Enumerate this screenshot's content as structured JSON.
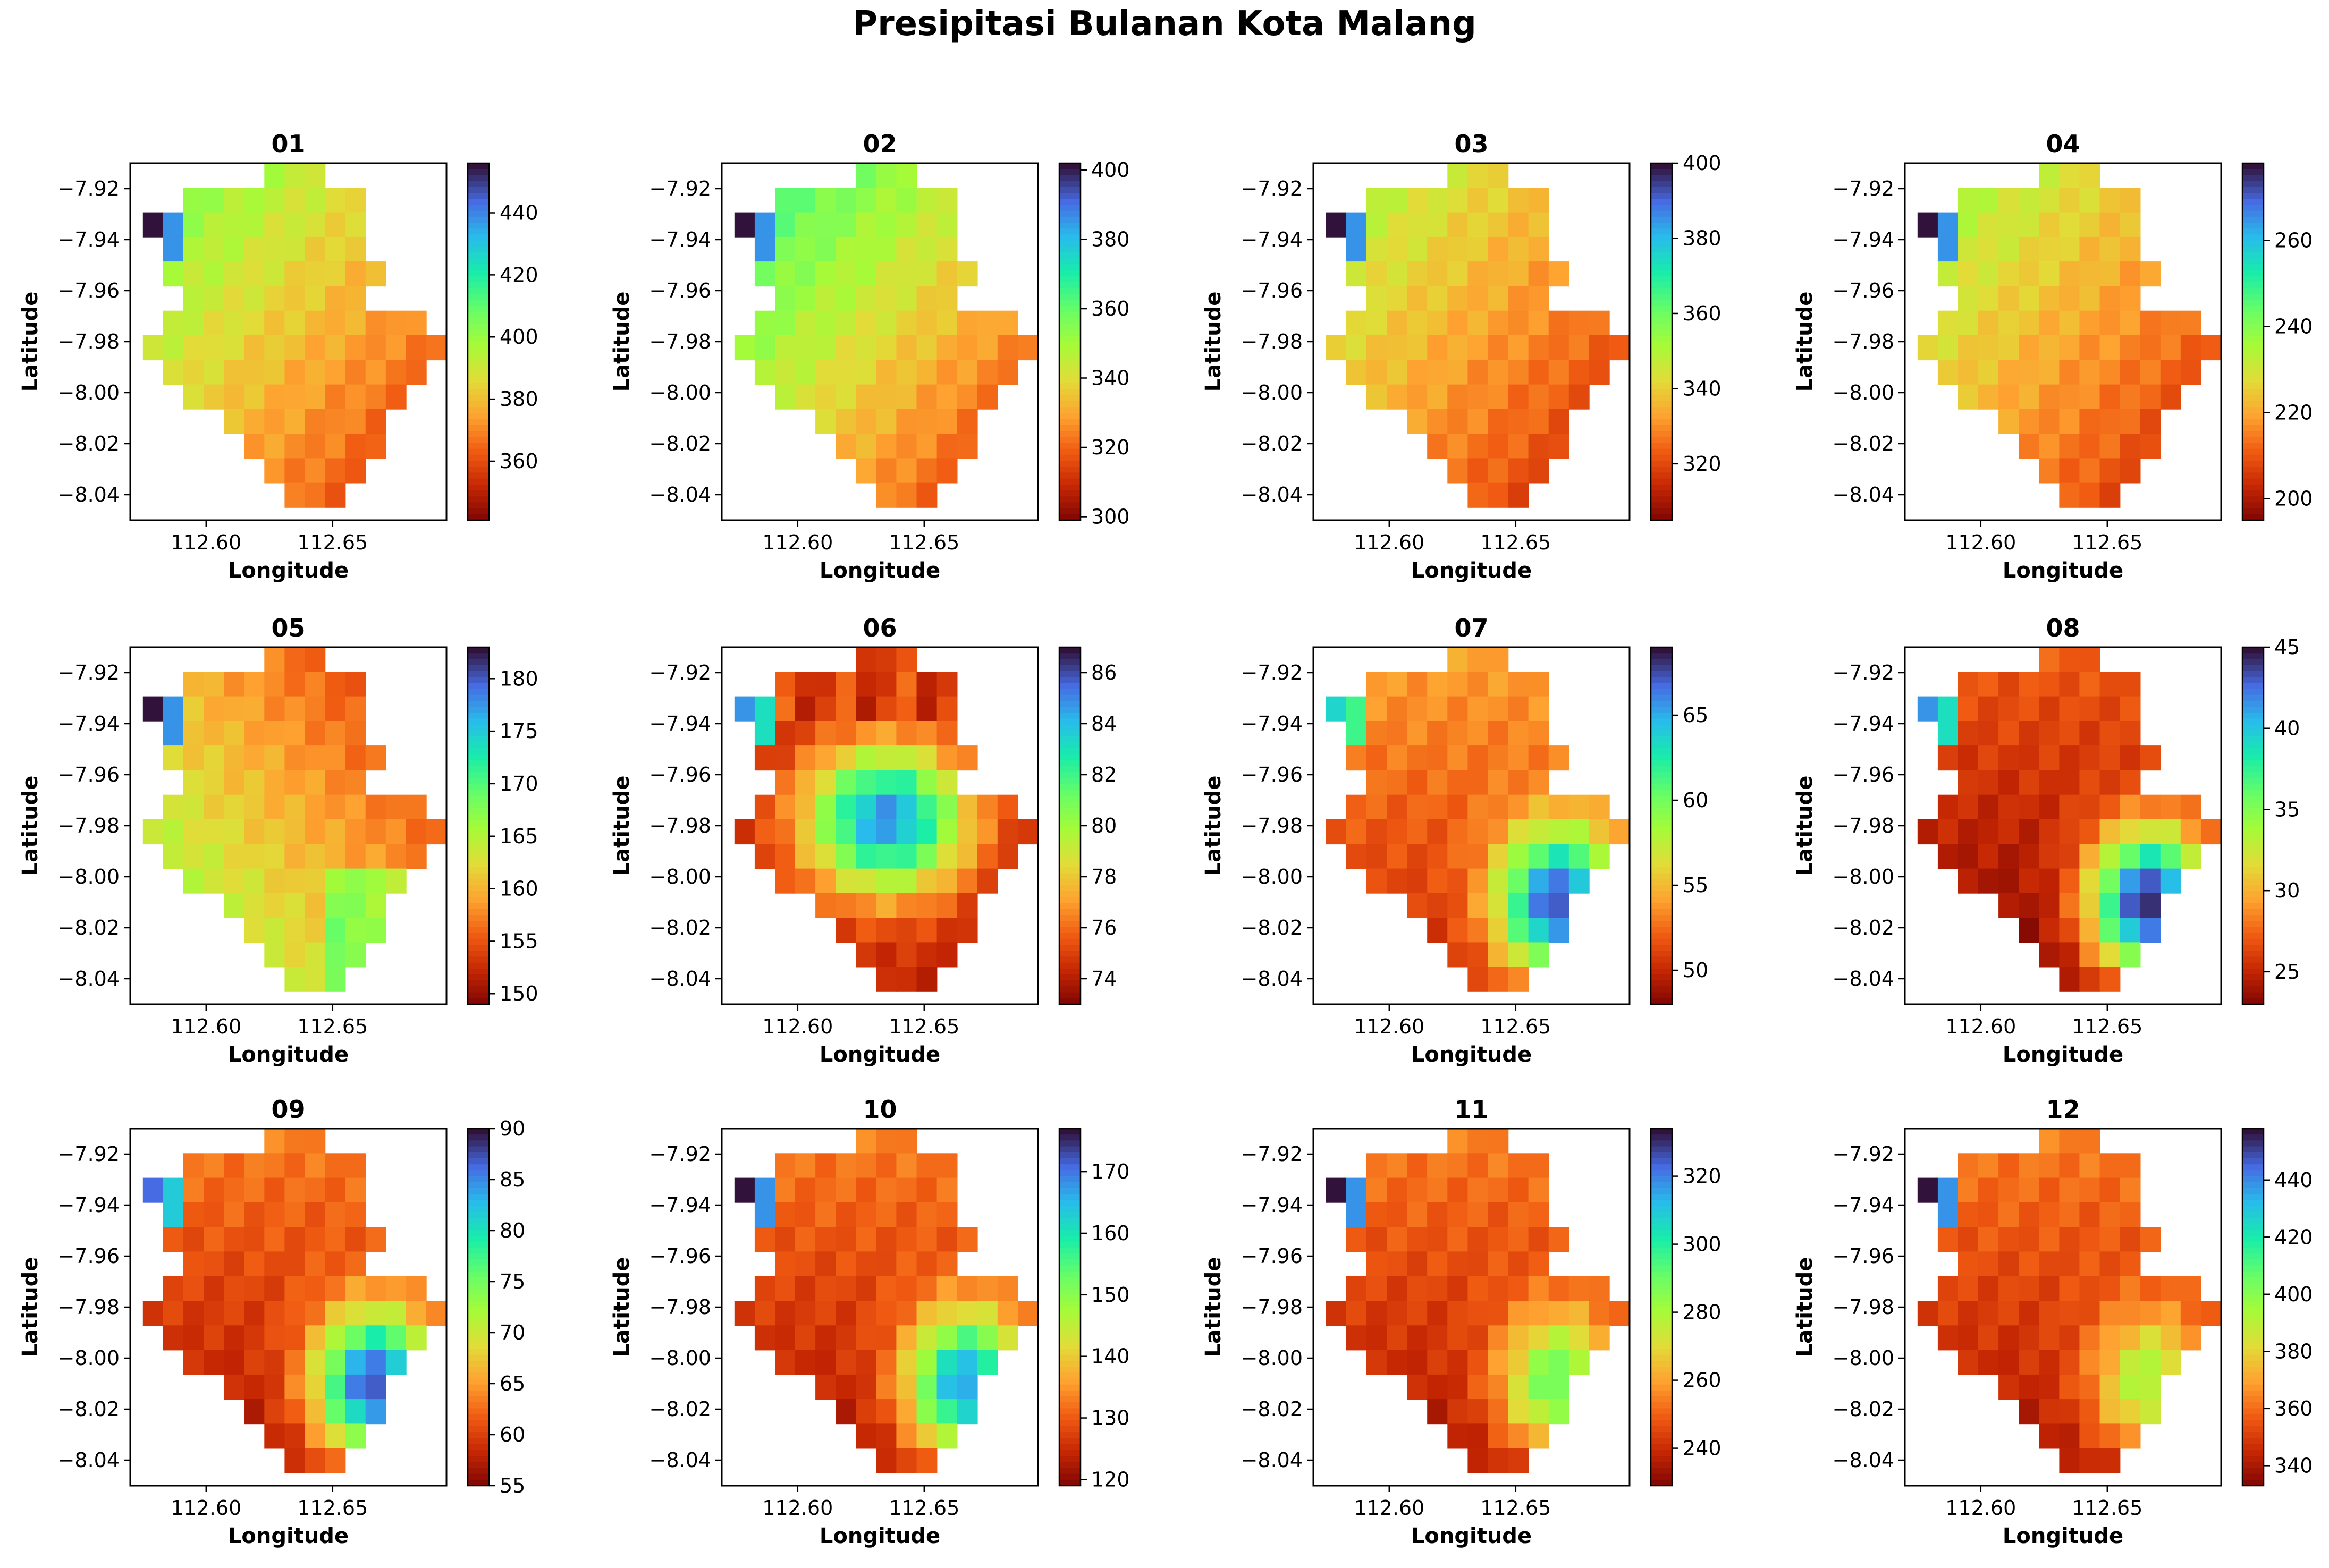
{
  "title": "Presipitasi Bulanan Kota Malang",
  "chart_data": {
    "type": "heatmap",
    "title": "Presipitasi Bulanan Kota Malang",
    "colormap": "turbo_r",
    "xlabel": "Longitude",
    "ylabel": "Latitude",
    "xlim": [
      112.57,
      112.695
    ],
    "ylim": [
      -8.05,
      -7.91
    ],
    "x_ticks": [
      112.6,
      112.65
    ],
    "x_tick_labels": [
      "112.60",
      "112.65"
    ],
    "y_ticks": [
      -7.92,
      -7.94,
      -7.96,
      -7.98,
      -8.0,
      -8.02,
      -8.04
    ],
    "y_tick_labels": [
      "−7.92",
      "−7.94",
      "−7.96",
      "−7.98",
      "−8.00",
      "−8.02",
      "−8.04"
    ],
    "grid": false,
    "panels": [
      {
        "title": "01",
        "vmin": 341,
        "vmax": 456,
        "colorbar_ticks": [
          360,
          380,
          400,
          420,
          440
        ],
        "colorbar_tick_labels": [
          "360",
          "380",
          "400",
          "420",
          "440"
        ],
        "pattern": "west_high",
        "field_low": 0.05,
        "field_high": 0.45,
        "west_value": 1.0
      },
      {
        "title": "02",
        "vmin": 299,
        "vmax": 402,
        "colorbar_ticks": [
          300,
          320,
          340,
          360,
          380,
          400
        ],
        "colorbar_tick_labels": [
          "300",
          "320",
          "340",
          "360",
          "380",
          "400"
        ],
        "pattern": "west_high",
        "field_low": 0.05,
        "field_high": 0.55,
        "west_value": 1.0
      },
      {
        "title": "03",
        "vmin": 305,
        "vmax": 400,
        "colorbar_ticks": [
          320,
          340,
          360,
          380,
          400
        ],
        "colorbar_tick_labels": [
          "320",
          "340",
          "360",
          "380",
          "400"
        ],
        "pattern": "west_high",
        "field_low": 0.02,
        "field_high": 0.38,
        "west_value": 1.0
      },
      {
        "title": "04",
        "vmin": 195,
        "vmax": 278,
        "colorbar_ticks": [
          200,
          220,
          240,
          260
        ],
        "colorbar_tick_labels": [
          "200",
          "220",
          "240",
          "260"
        ],
        "pattern": "west_high",
        "field_low": 0.02,
        "field_high": 0.4,
        "west_value": 1.0
      },
      {
        "title": "05",
        "vmin": 149,
        "vmax": 183,
        "colorbar_ticks": [
          150,
          155,
          160,
          165,
          170,
          175,
          180
        ],
        "colorbar_tick_labels": [
          "150",
          "155",
          "160",
          "165",
          "170",
          "175",
          "180"
        ],
        "pattern": "northeast_low",
        "field_low": 0.1,
        "field_high": 0.5,
        "west_value": 1.0
      },
      {
        "title": "06",
        "vmin": 73,
        "vmax": 87,
        "colorbar_ticks": [
          74,
          76,
          78,
          80,
          82,
          84,
          86
        ],
        "colorbar_tick_labels": [
          "74",
          "76",
          "78",
          "80",
          "82",
          "84",
          "86"
        ],
        "pattern": "center_high",
        "field_low": 0.1,
        "field_high": 0.85,
        "west_value": 0.85
      },
      {
        "title": "07",
        "vmin": 48,
        "vmax": 69,
        "colorbar_ticks": [
          50,
          55,
          60,
          65
        ],
        "colorbar_tick_labels": [
          "50",
          "55",
          "60",
          "65"
        ],
        "pattern": "southeast_high",
        "field_low": 0.1,
        "field_high": 0.9,
        "west_value": 0.75
      },
      {
        "title": "08",
        "vmin": 23,
        "vmax": 45,
        "colorbar_ticks": [
          25,
          30,
          35,
          40,
          45
        ],
        "colorbar_tick_labels": [
          "25",
          "30",
          "35",
          "40",
          "45"
        ],
        "pattern": "southeast_high",
        "field_low": 0.0,
        "field_high": 0.95,
        "west_value": 0.85
      },
      {
        "title": "09",
        "vmin": 55,
        "vmax": 90,
        "colorbar_ticks": [
          55,
          60,
          65,
          70,
          75,
          80,
          85,
          90
        ],
        "colorbar_tick_labels": [
          "55",
          "60",
          "65",
          "70",
          "75",
          "80",
          "85",
          "90"
        ],
        "pattern": "southeast_high",
        "field_low": 0.05,
        "field_high": 0.9,
        "west_value": 0.9
      },
      {
        "title": "10",
        "vmin": 119,
        "vmax": 177,
        "colorbar_ticks": [
          120,
          130,
          140,
          150,
          160,
          170
        ],
        "colorbar_tick_labels": [
          "120",
          "130",
          "140",
          "150",
          "160",
          "170"
        ],
        "pattern": "southeast_high",
        "field_low": 0.05,
        "field_high": 0.8,
        "west_value": 1.0
      },
      {
        "title": "11",
        "vmin": 229,
        "vmax": 334,
        "colorbar_ticks": [
          240,
          260,
          280,
          300,
          320
        ],
        "colorbar_tick_labels": [
          "240",
          "260",
          "280",
          "300",
          "320"
        ],
        "pattern": "southeast_high",
        "field_low": 0.05,
        "field_high": 0.55,
        "west_value": 1.0
      },
      {
        "title": "12",
        "vmin": 333,
        "vmax": 458,
        "colorbar_ticks": [
          340,
          360,
          380,
          400,
          420,
          440
        ],
        "colorbar_tick_labels": [
          "340",
          "360",
          "380",
          "400",
          "420",
          "440"
        ],
        "pattern": "southeast_high",
        "field_low": 0.05,
        "field_high": 0.45,
        "west_value": 1.0
      }
    ]
  }
}
